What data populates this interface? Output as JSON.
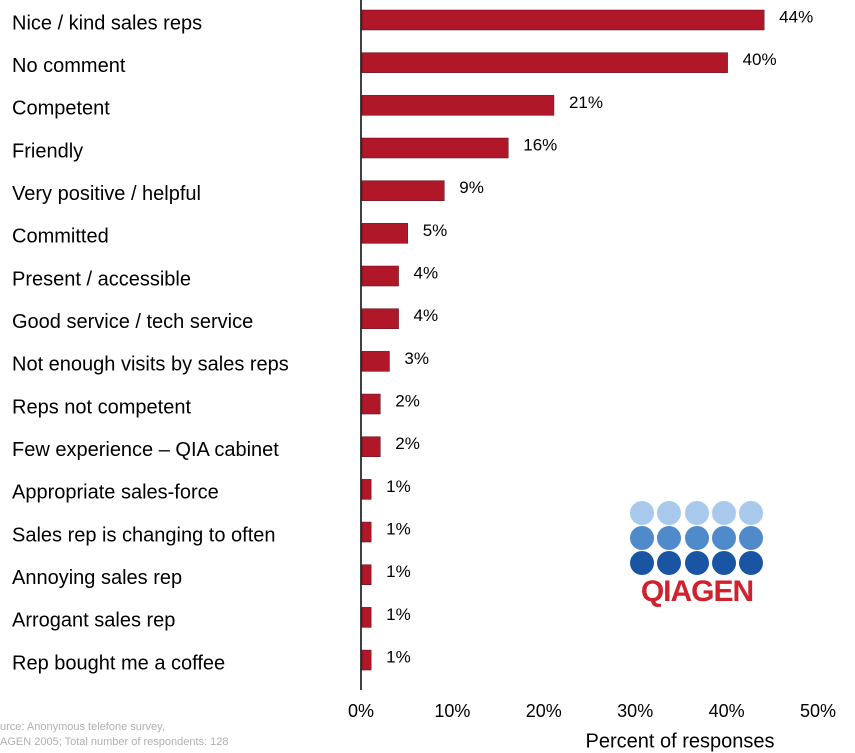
{
  "chart_data": {
    "type": "bar",
    "orientation": "horizontal",
    "categories": [
      "Nice / kind sales reps",
      "No comment",
      "Competent",
      "Friendly",
      "Very positive / helpful",
      "Committed",
      "Present / accessible",
      "Good service /  tech service",
      "Not enough visits by sales reps",
      "Reps not competent",
      "Few experience – QIA cabinet",
      "Appropriate sales-force",
      "Sales rep is changing to often",
      "Annoying sales rep",
      "Arrogant sales rep",
      "Rep bought me a coffee"
    ],
    "values": [
      44,
      40,
      21,
      16,
      9,
      5,
      4,
      4,
      3,
      2,
      2,
      1,
      1,
      1,
      1,
      1
    ],
    "value_labels": [
      "44%",
      "40%",
      "21%",
      "16%",
      "9%",
      "5%",
      "4%",
      "4%",
      "3%",
      "2%",
      "2%",
      "1%",
      "1%",
      "1%",
      "1%",
      "1%"
    ],
    "color": "#b0182a",
    "xlim": [
      0,
      50
    ],
    "xticks": [
      {
        "value": 0,
        "label": "0%"
      },
      {
        "value": 10,
        "label": "10%"
      },
      {
        "value": 20,
        "label": "20%"
      },
      {
        "value": 30,
        "label": "30%"
      },
      {
        "value": 40,
        "label": "40%"
      },
      {
        "value": 50,
        "label": "50%"
      }
    ],
    "xlabel": "Percent of responses",
    "source": [
      "urce: Anonymous telefone survey,",
      "AGEN 2005; Total number of respondents: 128"
    ]
  },
  "logo": {
    "text": "QIAGEN"
  }
}
